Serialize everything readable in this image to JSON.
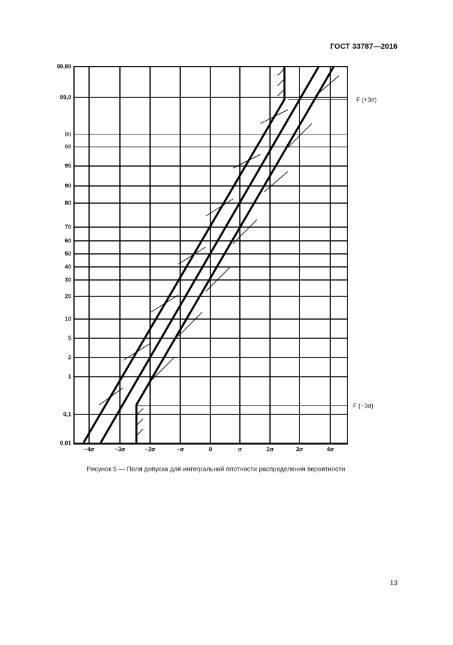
{
  "header": {
    "code": "ГОСТ 33787—2016"
  },
  "figure": {
    "y_labels": [
      "99,99",
      "99,9",
      "99",
      "98",
      "95",
      "90",
      "80",
      "70",
      "60",
      "50",
      "40",
      "30",
      "20",
      "10",
      "5",
      "2",
      "1",
      "0,1",
      "0,01"
    ],
    "x_labels": [
      "−4σ",
      "−3σ",
      "−2σ",
      "−σ",
      "0",
      "σ",
      "2σ",
      "3σ",
      "4σ"
    ],
    "annotations": [
      "F (+3σ)",
      "F (−3σ)"
    ]
  },
  "caption": "Рисунок 5 — Поля допуска для интегральной плотности распределения вероятности",
  "page_number": "13"
}
